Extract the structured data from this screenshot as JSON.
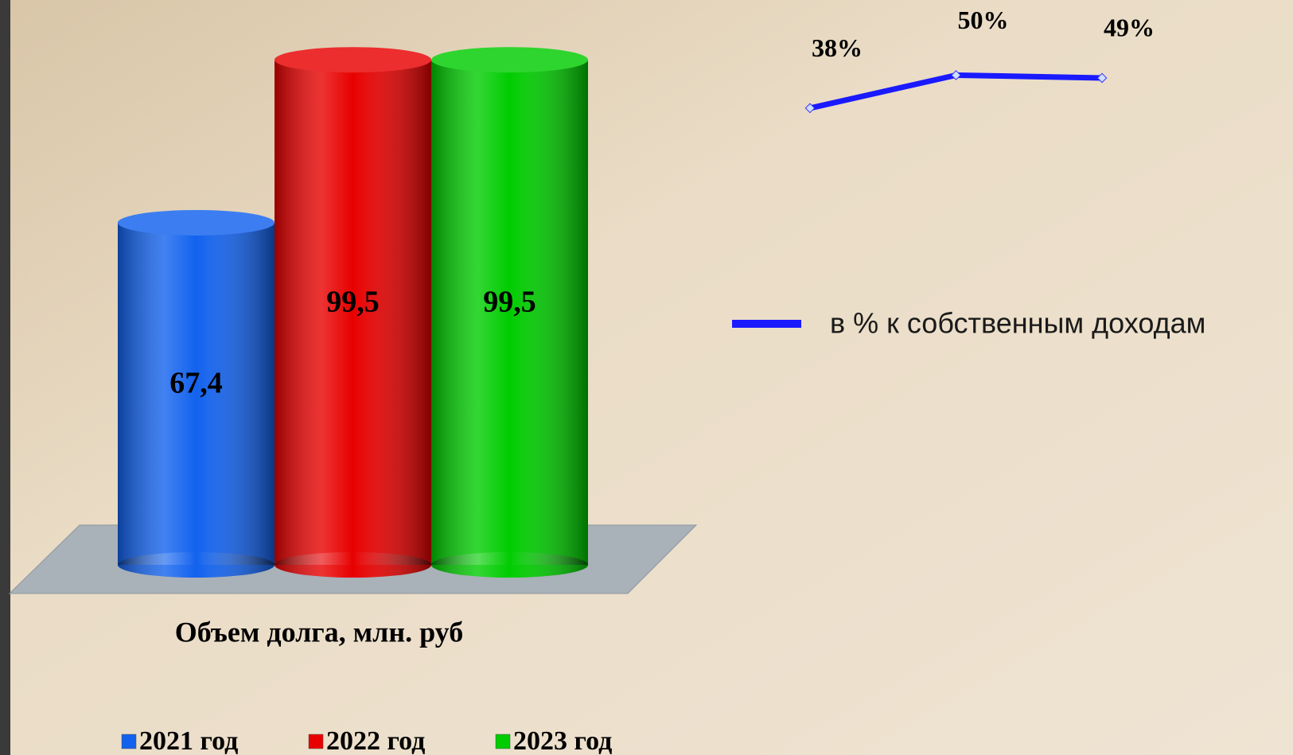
{
  "chart_data": [
    {
      "type": "bar",
      "categories": [
        "Объем долга, млн. руб"
      ],
      "series": [
        {
          "name": "2021 год",
          "color": "#1262ee",
          "values": [
            67.4
          ],
          "value_labels": [
            "67,4"
          ]
        },
        {
          "name": "2022 год",
          "color": "#e80000",
          "values": [
            99.5
          ],
          "value_labels": [
            "99,5"
          ]
        },
        {
          "name": "2023 год",
          "color": "#00cc00",
          "values": [
            99.5
          ],
          "value_labels": [
            "99,5"
          ]
        }
      ]
    },
    {
      "type": "line",
      "categories": [
        null,
        null,
        null
      ],
      "series": [
        {
          "name": "в % к собственным доходам",
          "color": "#1a1aff",
          "values": [
            38,
            50,
            49
          ],
          "value_labels": [
            "38%",
            "50%",
            "49%"
          ]
        }
      ]
    }
  ]
}
